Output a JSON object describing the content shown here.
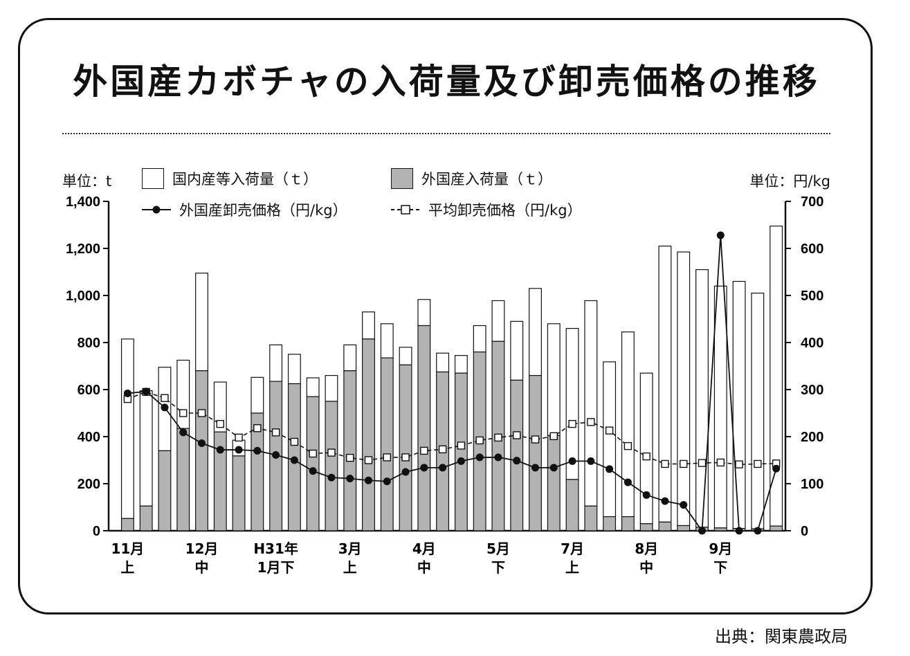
{
  "title": "外国産カボチャの入荷量及び卸売価格の推移",
  "source": "出典：関東農政局",
  "unit_left": "単位：t",
  "unit_right": "単位：円/kg",
  "legend": {
    "domestic": "国内産等入荷量（ｔ）",
    "foreign": "外国産入荷量（ｔ）",
    "foreign_price": "外国産卸売価格（円/kg）",
    "avg_price": "平均卸売価格（円/kg）"
  },
  "colors": {
    "foreign_bar": "#b3b3b3",
    "domestic_bar": "#ffffff",
    "line": "#111111"
  },
  "chart_data": {
    "type": "bar",
    "left_axis": {
      "range": [
        0,
        1400
      ],
      "ticks": [
        "0",
        "200",
        "400",
        "600",
        "800",
        "1,000",
        "1,200",
        "1,400"
      ]
    },
    "right_axis": {
      "range": [
        0,
        700
      ],
      "ticks": [
        "0",
        "100",
        "200",
        "300",
        "400",
        "500",
        "600",
        "700"
      ]
    },
    "x_labels": [
      {
        "index": 0,
        "lines": [
          "11月",
          "上"
        ]
      },
      {
        "index": 4,
        "lines": [
          "12月",
          "中"
        ]
      },
      {
        "index": 8,
        "lines": [
          "H31年",
          "1月下"
        ]
      },
      {
        "index": 12,
        "lines": [
          "3月",
          "上"
        ]
      },
      {
        "index": 16,
        "lines": [
          "4月",
          "中"
        ]
      },
      {
        "index": 20,
        "lines": [
          "5月",
          "下"
        ]
      },
      {
        "index": 24,
        "lines": [
          "7月",
          "上"
        ]
      },
      {
        "index": 28,
        "lines": [
          "8月",
          "中"
        ]
      },
      {
        "index": 32,
        "lines": [
          "9月",
          "下"
        ]
      }
    ],
    "total": [
      815,
      595,
      695,
      725,
      1095,
      632,
      385,
      652,
      790,
      750,
      650,
      660,
      790,
      930,
      880,
      780,
      983,
      755,
      745,
      872,
      978,
      890,
      1030,
      880,
      860,
      978,
      718,
      845,
      670,
      1210,
      1185,
      1110,
      1040,
      1060,
      1010,
      1295
    ],
    "foreign": [
      52,
      105,
      340,
      435,
      680,
      420,
      318,
      500,
      635,
      625,
      570,
      550,
      680,
      815,
      735,
      705,
      872,
      675,
      670,
      760,
      805,
      640,
      660,
      405,
      218,
      105,
      60,
      60,
      30,
      37,
      22,
      15,
      12,
      10,
      8,
      20
    ],
    "series": [
      {
        "key": "foreign_price",
        "values": [
          292,
          296,
          262,
          209,
          186,
          172,
          172,
          170,
          161,
          150,
          127,
          113,
          111,
          107,
          105,
          125,
          134,
          134,
          148,
          156,
          156,
          149,
          134,
          134,
          148,
          148,
          131,
          103,
          76,
          63,
          55,
          0,
          628,
          0,
          0,
          132
        ]
      },
      {
        "key": "avg_price",
        "values": [
          280,
          295,
          282,
          250,
          250,
          227,
          198,
          218,
          209,
          189,
          164,
          166,
          155,
          150,
          156,
          156,
          170,
          173,
          181,
          192,
          198,
          203,
          194,
          201,
          227,
          231,
          213,
          180,
          158,
          142,
          142,
          144,
          145,
          141,
          142,
          143
        ]
      }
    ]
  }
}
